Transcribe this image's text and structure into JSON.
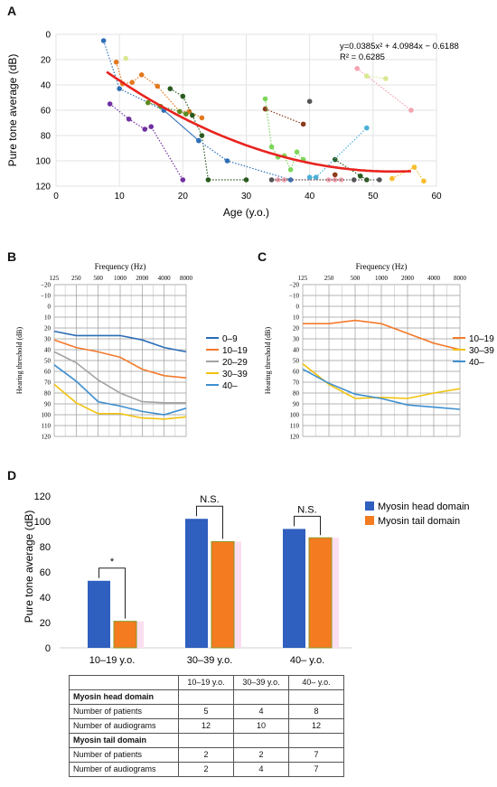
{
  "panels": {
    "A": "A",
    "B": "B",
    "C": "C",
    "D": "D"
  },
  "colors": {
    "fit": "#e8231e",
    "g0_9": "#2a6cb6",
    "g10_19": "#f47a2c",
    "g20_29": "#a3a3a3",
    "g30_39": "#f2c20f",
    "g40": "#3e8fd0",
    "head": "#2f5fbf",
    "tail": "#f47b20",
    "purple": "#7030a0",
    "blue": "#2f6fb7",
    "orange": "#e3781e",
    "olive": "#5b8a1e",
    "darkgreen": "#2a5a1e",
    "lightgreen": "#7cd65a",
    "brown": "#8b3a1a",
    "teal": "#4ab0d8",
    "pink": "#f4a3b0",
    "lightyellow": "#d8e890",
    "gold": "#f6bc2a",
    "grey": "#555555"
  },
  "chart_data": [
    {
      "id": "A",
      "type": "scatter",
      "xlabel": "Age (y.o.)",
      "ylabel": "Pure tone average (dB)",
      "xlim": [
        0,
        60
      ],
      "ylim": [
        0,
        120
      ],
      "y_inverted": true,
      "x_ticks": [
        "0",
        "10",
        "20",
        "30",
        "40",
        "50",
        "60"
      ],
      "y_ticks": [
        "0",
        "20",
        "40",
        "60",
        "80",
        "100",
        "120"
      ],
      "equation": "y=0.0385x² + 4.0984x − 0.6188",
      "r_squared": "R² = 0.6285",
      "fit_curve": {
        "a": 0.0385,
        "b": 4.0984,
        "c": -0.6188,
        "x_range": [
          8,
          56
        ]
      },
      "subjects": [
        {
          "color": "purple",
          "points": [
            [
              8.5,
              55
            ],
            [
              11.5,
              67
            ],
            [
              14,
              75
            ],
            [
              15,
              73
            ],
            [
              20,
              115
            ]
          ]
        },
        {
          "color": "blue",
          "points": [
            [
              7.5,
              5
            ],
            [
              10,
              43
            ],
            [
              17,
              60
            ],
            [
              22.5,
              84
            ]
          ]
        },
        {
          "color": "orange",
          "points": [
            [
              9.5,
              22
            ],
            [
              10.5,
              39
            ],
            [
              12,
              38
            ],
            [
              13.5,
              32
            ],
            [
              16,
              41
            ],
            [
              19.5,
              61
            ],
            [
              21,
              61
            ],
            [
              23,
              66
            ]
          ]
        },
        {
          "color": "olive",
          "points": [
            [
              14.5,
              54
            ],
            [
              16.5,
              57
            ],
            [
              19.5,
              61
            ],
            [
              20.5,
              63
            ]
          ]
        },
        {
          "color": "darkgreen",
          "points": [
            [
              18,
              43
            ],
            [
              20,
              49
            ],
            [
              21.5,
              64
            ],
            [
              23,
              80
            ],
            [
              24,
              115
            ],
            [
              30,
              115
            ]
          ]
        },
        {
          "color": "blue",
          "points": [
            [
              17,
              60
            ],
            [
              22.5,
              84
            ],
            [
              27,
              100
            ],
            [
              37,
              115
            ]
          ]
        },
        {
          "color": "brown",
          "points": [
            [
              33,
              59
            ],
            [
              39,
              71
            ]
          ]
        },
        {
          "color": "lightgreen",
          "points": [
            [
              33,
              51
            ],
            [
              34,
              89
            ],
            [
              35,
              97
            ],
            [
              36,
              96
            ],
            [
              37,
              107
            ],
            [
              38,
              93
            ],
            [
              39,
              99
            ]
          ]
        },
        {
          "color": "darkgreen",
          "points": [
            [
              44,
              99
            ],
            [
              48,
              112
            ],
            [
              49,
              115
            ]
          ]
        },
        {
          "color": "grey",
          "points": [
            [
              40,
              53
            ]
          ]
        },
        {
          "color": "teal",
          "points": [
            [
              40,
              113
            ],
            [
              41,
              113
            ],
            [
              49,
              74
            ]
          ]
        },
        {
          "color": "pink",
          "points": [
            [
              47.5,
              27
            ],
            [
              56,
              60
            ]
          ]
        },
        {
          "color": "lightyellow",
          "points": [
            [
              49,
              33
            ],
            [
              52,
              35
            ]
          ]
        },
        {
          "color": "pink",
          "points": [
            [
              35,
              115
            ],
            [
              36,
              115
            ],
            [
              43,
              115
            ],
            [
              44,
              115
            ],
            [
              45,
              115
            ]
          ]
        },
        {
          "color": "grey",
          "points": [
            [
              34,
              115
            ],
            [
              47,
              115
            ],
            [
              51,
              115
            ]
          ]
        },
        {
          "color": "gold",
          "points": [
            [
              53,
              114
            ],
            [
              56.5,
              105
            ],
            [
              58,
              116
            ]
          ]
        },
        {
          "color": "lightyellow",
          "points": [
            [
              11,
              19
            ]
          ]
        },
        {
          "color": "brown",
          "points": [
            [
              44,
              111
            ]
          ]
        }
      ]
    },
    {
      "id": "B",
      "type": "line",
      "title": "Frequency (Hz)",
      "ylabel": "Hearing threshold (dB)",
      "categories": [
        "125",
        "250",
        "500",
        "1000",
        "2000",
        "4000",
        "8000"
      ],
      "ylim": [
        -20,
        120
      ],
      "y_inverted": true,
      "y_ticks": [
        "−20",
        "−10",
        "0",
        "10",
        "20",
        "30",
        "40",
        "50",
        "60",
        "70",
        "80",
        "90",
        "100",
        "110",
        "120"
      ],
      "series": [
        {
          "name": "0–9",
          "color": "g0_9",
          "values": [
            23,
            27,
            27,
            27,
            31,
            38,
            42
          ]
        },
        {
          "name": "10–19",
          "color": "g10_19",
          "values": [
            31,
            38,
            42,
            47,
            58,
            64,
            66
          ]
        },
        {
          "name": "20–29",
          "color": "g20_29",
          "values": [
            42,
            52,
            68,
            80,
            88,
            89,
            89
          ]
        },
        {
          "name": "30–39",
          "color": "g30_39",
          "values": [
            72,
            89,
            99,
            99,
            103,
            104,
            102
          ]
        },
        {
          "name": "40–",
          "color": "g40",
          "values": [
            54,
            69,
            88,
            92,
            97,
            100,
            94
          ]
        }
      ]
    },
    {
      "id": "C",
      "type": "line",
      "title": "Frequency (Hz)",
      "ylabel": "Hearing threshold (dB)",
      "categories": [
        "125",
        "250",
        "500",
        "1000",
        "2000",
        "4000",
        "8000"
      ],
      "ylim": [
        -20,
        120
      ],
      "y_inverted": true,
      "y_ticks": [
        "−20",
        "−10",
        "0",
        "10",
        "20",
        "30",
        "40",
        "50",
        "60",
        "70",
        "80",
        "90",
        "100",
        "110",
        "120"
      ],
      "series": [
        {
          "name": "10–19",
          "color": "g10_19",
          "values": [
            16,
            16,
            13,
            16,
            25,
            34,
            40
          ]
        },
        {
          "name": "30–39",
          "color": "g30_39",
          "values": [
            53,
            72,
            85,
            84,
            85,
            80,
            76
          ]
        },
        {
          "name": "40–",
          "color": "g40",
          "values": [
            58,
            71,
            81,
            85,
            91,
            93,
            95
          ]
        }
      ]
    },
    {
      "id": "D",
      "type": "bar",
      "ylabel": "Pure tone average (dB)",
      "categories": [
        "10–19 y.o.",
        "30–39 y.o.",
        "40– y.o."
      ],
      "ylim": [
        0,
        120
      ],
      "y_ticks": [
        "0",
        "20",
        "40",
        "60",
        "80",
        "100",
        "120"
      ],
      "series": [
        {
          "name": "Myosin head domain",
          "color": "head",
          "values": [
            53,
            102,
            94
          ]
        },
        {
          "name": "Myosin tail domain",
          "color": "tail",
          "values": [
            21,
            84,
            87
          ]
        }
      ],
      "significance": [
        "*",
        "N.S.",
        "N.S."
      ]
    }
  ],
  "table": {
    "columns": [
      "",
      "10–19 y.o.",
      "30–39 y.o.",
      "40– y.o."
    ],
    "rows": [
      {
        "type": "section",
        "cells": [
          "Myosin head domain",
          "",
          "",
          ""
        ]
      },
      {
        "type": "data",
        "cells": [
          "Number of patients",
          "5",
          "4",
          "8"
        ]
      },
      {
        "type": "data",
        "cells": [
          "Number of audiograms",
          "12",
          "10",
          "12"
        ]
      },
      {
        "type": "section",
        "cells": [
          "Myosin tail domain",
          "",
          "",
          ""
        ]
      },
      {
        "type": "data",
        "cells": [
          "Number of patients",
          "2",
          "2",
          "7"
        ]
      },
      {
        "type": "data",
        "cells": [
          "Number of audiograms",
          "2",
          "4",
          "7"
        ]
      }
    ]
  }
}
